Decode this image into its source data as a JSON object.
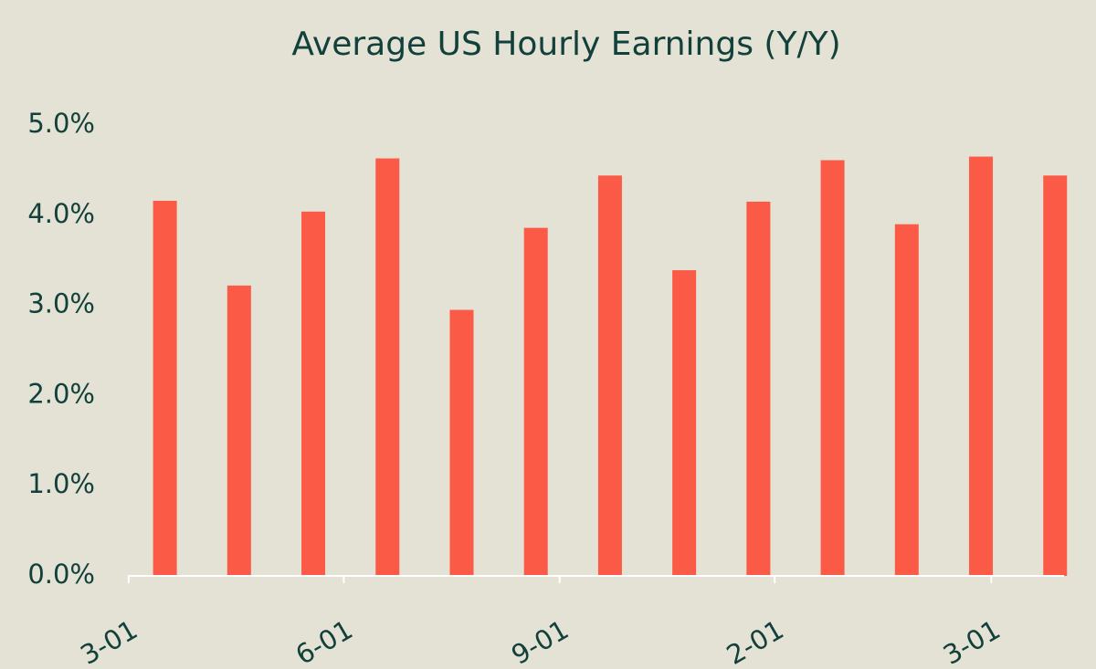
{
  "chart_data": {
    "type": "bar",
    "title": "Average US Hourly Earnings (Y/Y)",
    "categories": [
      null,
      null,
      null,
      null,
      null,
      null,
      null,
      null,
      null,
      null,
      null,
      null,
      null
    ],
    "values": [
      4.16,
      3.22,
      4.04,
      4.63,
      2.95,
      3.86,
      4.44,
      3.39,
      4.15,
      4.61,
      3.9,
      4.65,
      4.44
    ],
    "color": "#fa5a46",
    "ylim": [
      0,
      5
    ],
    "yticks": [
      {
        "value": 0,
        "label": "0.0%"
      },
      {
        "value": 1,
        "label": "1.0%"
      },
      {
        "value": 2,
        "label": "2.0%"
      },
      {
        "value": 3,
        "label": "3.0%"
      },
      {
        "value": 4,
        "label": "4.0%"
      },
      {
        "value": 5,
        "label": "5.0%"
      }
    ],
    "xlim": [
      -0.5,
      12.12
    ],
    "xticks": [
      {
        "value": -0.49,
        "label": "3-01"
      },
      {
        "value": 2.41,
        "label": "6-01"
      },
      {
        "value": 5.32,
        "label": "9-01"
      },
      {
        "value": 8.22,
        "label": "2-01"
      },
      {
        "value": 11.14,
        "label": "3-01"
      }
    ],
    "grid": false
  }
}
